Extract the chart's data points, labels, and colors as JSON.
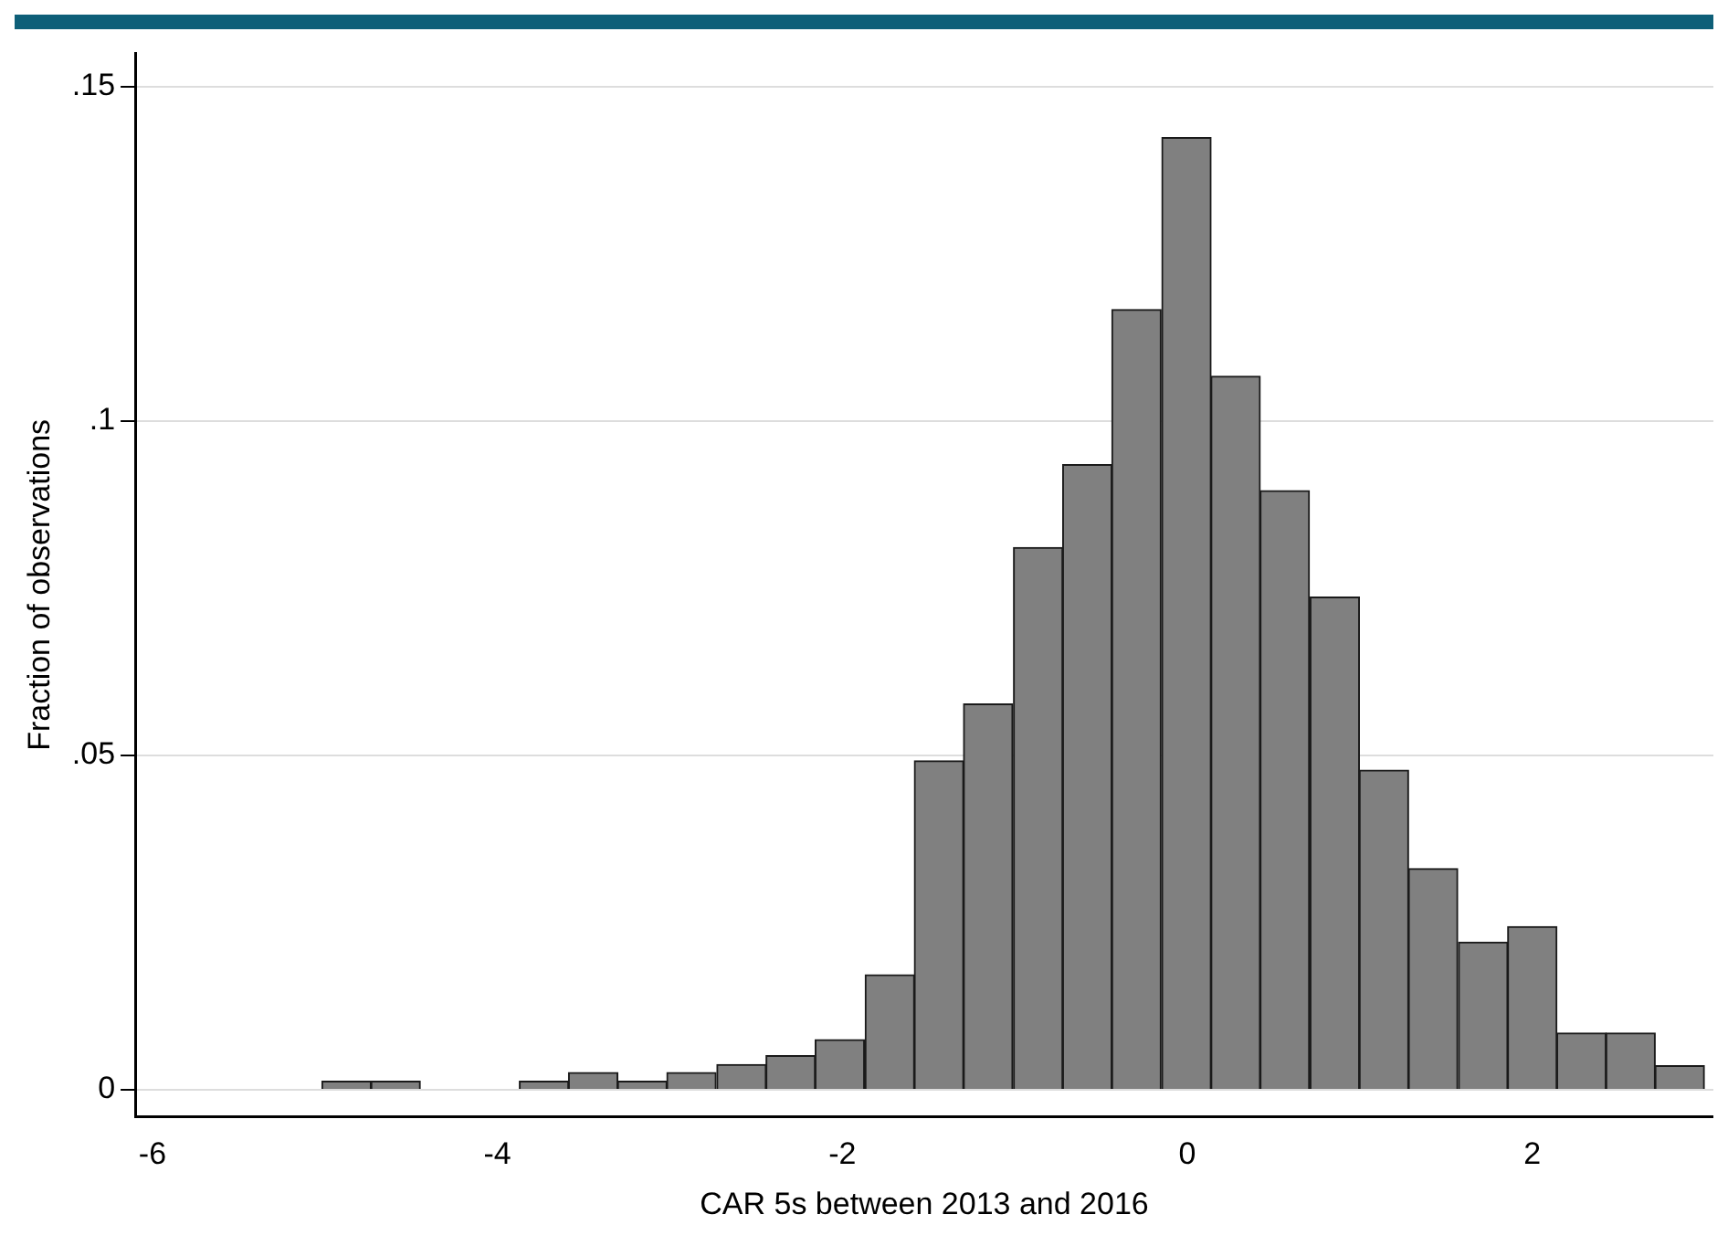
{
  "chart_data": {
    "type": "histogram",
    "xlabel": "CAR 5s between 2013 and 2016",
    "ylabel": "Fraction of observations",
    "bins": [
      -5.02,
      -4.73,
      -4.45,
      -4.16,
      -3.87,
      -3.59,
      -3.3,
      -3.02,
      -2.73,
      -2.44,
      -2.16,
      -1.87,
      -1.58,
      -1.3,
      -1.01,
      -0.72,
      -0.44,
      -0.15,
      0.14,
      0.42,
      0.71,
      1.0,
      1.28,
      1.57,
      1.86,
      2.14,
      2.43,
      2.71,
      3.0
    ],
    "values": [
      0.0013,
      0.0013,
      0,
      0,
      0.0013,
      0.0026,
      0.0013,
      0.0026,
      0.0038,
      0.0051,
      0.0075,
      0.0172,
      0.0492,
      0.0577,
      0.0811,
      0.0935,
      0.1167,
      0.1424,
      0.1067,
      0.0896,
      0.0737,
      0.0478,
      0.0331,
      0.0221,
      0.0244,
      0.0085,
      0.0085,
      0.0036
    ],
    "color": "#808080",
    "xlim": [
      -6.1,
      3.05
    ],
    "xticks": [
      -6,
      -4,
      -2,
      0,
      2
    ],
    "ylim": [
      -0.004,
      0.155
    ],
    "yticks": [
      {
        "value": 0,
        "label": "0"
      },
      {
        "value": 0.05,
        "label": ".05"
      },
      {
        "value": 0.1,
        "label": ".1"
      },
      {
        "value": 0.15,
        "label": ".15"
      }
    ],
    "grid": "y"
  }
}
